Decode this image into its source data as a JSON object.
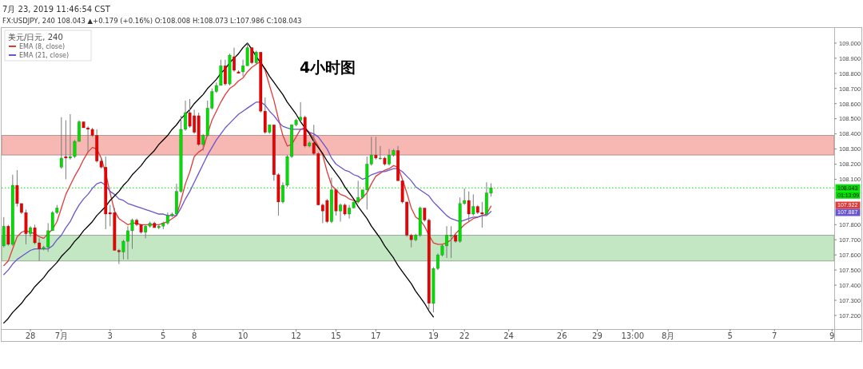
{
  "chart_data": {
    "type": "candlestick",
    "title": "4小时图",
    "subtitle": "FX:USDJPY, 240 108.043 ▲+0.179 (+0.16%) O:108.008 H:108.073 L:107.986 C:108.043",
    "legend_title": "美元/日元, 240",
    "annotations": [
      "7月 23, 2019 11:46:54 CST",
      "01:13:09",
      "107.922",
      "107.887"
    ],
    "legend": "top left",
    "categories": [
      null,
      null,
      null,
      null,
      null,
      null,
      "28",
      null,
      null,
      null,
      null,
      null,
      null,
      "7月",
      null,
      null,
      null,
      null,
      null,
      null,
      null,
      null,
      null,
      null,
      "3",
      null,
      null,
      null,
      null,
      null,
      null,
      null,
      null,
      null,
      null,
      null,
      "5",
      null,
      null,
      null,
      null,
      null,
      null,
      "8",
      null,
      null,
      null,
      null,
      null,
      null,
      null,
      null,
      null,
      null,
      "10",
      null,
      null,
      null,
      null,
      null,
      null,
      null,
      null,
      null,
      null,
      null,
      "12",
      null,
      null,
      null,
      null,
      null,
      null,
      null,
      null,
      "15",
      null,
      null,
      null,
      null,
      null,
      null,
      null,
      null,
      "17",
      null,
      null,
      null,
      null,
      null,
      null,
      null,
      null,
      null,
      null,
      null,
      null,
      "19",
      null,
      null,
      null,
      null,
      null,
      null,
      "22",
      null,
      null,
      null,
      null,
      null,
      null,
      null,
      null,
      null,
      "24",
      null,
      null,
      null,
      null,
      null,
      null,
      null,
      null,
      null,
      null,
      null,
      "26",
      null,
      null,
      null,
      null,
      null,
      null,
      null,
      "29",
      null,
      null,
      null,
      null,
      null,
      null,
      null,
      "13:00",
      null,
      null,
      null,
      null,
      null,
      null,
      null,
      "8月",
      null,
      null,
      null,
      null,
      null,
      null,
      null,
      null,
      null,
      null,
      null,
      null,
      null,
      "5",
      null,
      null,
      null,
      null,
      null,
      null,
      null,
      null,
      null,
      "7",
      null,
      null,
      null,
      null,
      null,
      null,
      null,
      null,
      null,
      null,
      null,
      null,
      "9"
    ],
    "ohlc": [
      [
        107.66,
        107.85,
        107.65,
        107.79
      ],
      [
        107.79,
        107.8,
        107.66,
        107.67
      ],
      [
        107.67,
        108.13,
        107.66,
        108.06
      ],
      [
        108.06,
        108.16,
        107.92,
        107.94
      ],
      [
        107.94,
        107.94,
        107.87,
        107.88
      ],
      [
        107.88,
        107.9,
        107.67,
        107.74
      ],
      [
        107.74,
        107.79,
        107.72,
        107.78
      ],
      [
        107.78,
        107.8,
        107.67,
        107.68
      ],
      [
        107.68,
        107.71,
        107.56,
        107.64
      ],
      [
        107.64,
        107.66,
        107.63,
        107.65
      ],
      [
        107.65,
        107.81,
        107.62,
        107.76
      ],
      [
        107.76,
        107.89,
        107.76,
        107.88
      ],
      [
        107.88,
        107.93,
        107.87,
        107.91
      ],
      [
        108.18,
        108.51,
        108.17,
        108.24
      ],
      [
        108.25,
        108.49,
        108.1,
        108.24
      ],
      [
        108.24,
        108.53,
        108.23,
        108.25
      ],
      [
        108.25,
        108.36,
        108.24,
        108.35
      ],
      [
        108.35,
        108.49,
        108.35,
        108.48
      ],
      [
        108.48,
        108.48,
        108.44,
        108.44
      ],
      [
        108.44,
        108.45,
        108.28,
        108.43
      ],
      [
        108.43,
        108.44,
        108.38,
        108.39
      ],
      [
        108.39,
        108.43,
        108.21,
        108.22
      ],
      [
        108.22,
        108.24,
        108.17,
        108.18
      ],
      [
        108.18,
        108.25,
        107.77,
        107.87
      ],
      [
        107.88,
        107.93,
        107.79,
        107.87
      ],
      [
        107.88,
        107.91,
        107.63,
        107.63
      ],
      [
        107.63,
        107.64,
        107.54,
        107.62
      ],
      [
        107.62,
        107.7,
        107.57,
        107.69
      ],
      [
        107.69,
        107.79,
        107.57,
        107.76
      ],
      [
        107.76,
        107.84,
        107.64,
        107.83
      ],
      [
        107.83,
        107.84,
        107.79,
        107.8
      ],
      [
        107.8,
        107.8,
        107.74,
        107.75
      ],
      [
        107.75,
        107.8,
        107.71,
        107.79
      ],
      [
        107.79,
        107.82,
        107.78,
        107.81
      ],
      [
        107.81,
        107.82,
        107.78,
        107.78
      ],
      [
        107.78,
        107.8,
        107.77,
        107.79
      ],
      [
        107.79,
        107.82,
        107.77,
        107.81
      ],
      [
        107.81,
        107.88,
        107.8,
        107.86
      ],
      [
        107.86,
        107.88,
        107.85,
        107.87
      ],
      [
        107.87,
        108.07,
        107.86,
        108.02
      ],
      [
        108.02,
        108.52,
        108.01,
        108.43
      ],
      [
        108.43,
        108.62,
        108.42,
        108.54
      ],
      [
        108.54,
        108.63,
        108.44,
        108.45
      ],
      [
        108.52,
        108.56,
        108.4,
        108.41
      ],
      [
        108.52,
        108.54,
        108.32,
        108.33
      ],
      [
        108.33,
        108.4,
        108.29,
        108.39
      ],
      [
        108.39,
        108.62,
        108.38,
        108.57
      ],
      [
        108.57,
        108.7,
        108.56,
        108.68
      ],
      [
        108.68,
        108.74,
        108.67,
        108.72
      ],
      [
        108.72,
        108.89,
        108.72,
        108.85
      ],
      [
        108.85,
        108.89,
        108.72,
        108.73
      ],
      [
        108.73,
        108.93,
        108.72,
        108.92
      ],
      [
        108.91,
        108.97,
        108.81,
        108.82
      ],
      [
        108.81,
        108.82,
        108.8,
        108.8
      ],
      [
        108.81,
        108.89,
        108.78,
        108.85
      ],
      [
        108.85,
        109.0,
        108.85,
        108.97
      ],
      [
        108.97,
        108.97,
        108.86,
        108.87
      ],
      [
        108.87,
        108.95,
        108.86,
        108.94
      ],
      [
        108.94,
        108.94,
        108.54,
        108.55
      ],
      [
        108.55,
        108.64,
        108.4,
        108.41
      ],
      [
        108.41,
        108.46,
        108.4,
        108.46
      ],
      [
        108.46,
        108.46,
        108.09,
        108.13
      ],
      [
        108.13,
        108.14,
        107.86,
        107.95
      ],
      [
        107.95,
        108.08,
        107.94,
        108.06
      ],
      [
        108.06,
        108.26,
        108.05,
        108.25
      ],
      [
        108.25,
        108.46,
        108.24,
        108.46
      ],
      [
        108.46,
        108.5,
        108.45,
        108.49
      ],
      [
        108.49,
        108.61,
        108.48,
        108.51
      ],
      [
        108.51,
        108.52,
        108.31,
        108.32
      ],
      [
        108.32,
        108.35,
        108.31,
        108.34
      ],
      [
        108.34,
        108.46,
        108.26,
        108.27
      ],
      [
        108.27,
        108.28,
        107.93,
        107.93
      ],
      [
        107.93,
        107.94,
        107.81,
        107.89
      ],
      [
        107.96,
        107.97,
        107.81,
        107.82
      ],
      [
        107.82,
        108.11,
        107.81,
        108.03
      ],
      [
        108.03,
        108.04,
        107.86,
        107.89
      ],
      [
        107.89,
        107.94,
        107.82,
        107.93
      ],
      [
        107.93,
        107.94,
        107.86,
        107.87
      ],
      [
        107.87,
        107.93,
        107.84,
        107.91
      ],
      [
        107.91,
        107.95,
        107.91,
        107.95
      ],
      [
        107.95,
        108.09,
        107.94,
        107.98
      ],
      [
        107.98,
        108.03,
        107.97,
        108.03
      ],
      [
        108.03,
        108.25,
        107.9,
        108.2
      ],
      [
        108.2,
        108.38,
        108.19,
        108.26
      ],
      [
        108.26,
        108.38,
        108.23,
        108.24
      ],
      [
        108.24,
        108.32,
        108.23,
        108.24
      ],
      [
        108.24,
        108.25,
        108.19,
        108.2
      ],
      [
        108.2,
        108.3,
        108.19,
        108.26
      ],
      [
        108.26,
        108.3,
        108.25,
        108.29
      ],
      [
        108.29,
        108.32,
        108.09,
        108.09
      ],
      [
        108.09,
        108.1,
        107.94,
        107.95
      ],
      [
        107.95,
        107.95,
        107.72,
        107.73
      ],
      [
        107.73,
        107.74,
        107.65,
        107.7
      ],
      [
        107.7,
        107.74,
        107.69,
        107.73
      ],
      [
        107.73,
        107.92,
        107.72,
        107.91
      ],
      [
        107.91,
        107.91,
        107.82,
        107.83
      ],
      [
        107.83,
        107.84,
        107.24,
        107.28
      ],
      [
        107.28,
        107.52,
        107.22,
        107.51
      ],
      [
        107.51,
        107.61,
        107.5,
        107.6
      ],
      [
        107.6,
        107.67,
        107.59,
        107.66
      ],
      [
        107.66,
        107.79,
        107.58,
        107.73
      ],
      [
        107.73,
        107.79,
        107.58,
        107.73
      ],
      [
        107.73,
        107.74,
        107.68,
        107.69
      ],
      [
        107.69,
        107.98,
        107.68,
        107.94
      ],
      [
        107.94,
        108.04,
        107.93,
        107.96
      ],
      [
        107.96,
        108.02,
        107.82,
        107.87
      ],
      [
        107.87,
        108.0,
        107.86,
        107.92
      ],
      [
        107.92,
        107.93,
        107.87,
        107.88
      ],
      [
        107.88,
        107.95,
        107.78,
        107.87
      ],
      [
        107.87,
        108.08,
        107.87,
        108.01
      ],
      [
        108.008,
        108.073,
        107.986,
        108.043
      ],
      null,
      null,
      null,
      null,
      null,
      null,
      null,
      null,
      null,
      null,
      null,
      null,
      null,
      null,
      null,
      null,
      null,
      null,
      null,
      null,
      null,
      null,
      null,
      null,
      null,
      null,
      null,
      null,
      null,
      null,
      null,
      null,
      null,
      null,
      null,
      null,
      null,
      null,
      null,
      null,
      null,
      null,
      null,
      null,
      null,
      null,
      null,
      null,
      null,
      null,
      null,
      null,
      null,
      null,
      null,
      null,
      null,
      null,
      null,
      null,
      null,
      null,
      null,
      null,
      null,
      null,
      null,
      null,
      null,
      null,
      null,
      null,
      null,
      null,
      null,
      null,
      null
    ],
    "colors": [
      "#00e000",
      "#ee0000",
      "#00e000",
      "#ee0000",
      "#ee0000",
      "#ee0000",
      "#00e000",
      "#ee0000",
      "#ee0000",
      "#00e000",
      "#00e000",
      "#00e000",
      "#00e000",
      "#00e000",
      "#ee0000",
      "#00e000",
      "#00e000",
      "#00e000",
      "#ee0000",
      "#ee0000",
      "#ee0000",
      "#ee0000",
      "#ee0000",
      "#ee0000",
      "#ee0000",
      "#ee0000",
      "#ee0000",
      "#00e000",
      "#00e000",
      "#00e000",
      "#ee0000",
      "#ee0000",
      "#00e000",
      "#00e000",
      "#ee0000",
      "#00e000",
      "#00e000",
      "#00e000",
      "#00e000",
      "#00e000",
      "#00e000",
      "#00e000",
      "#ee0000",
      "#ee0000",
      "#ee0000",
      "#00e000",
      "#00e000",
      "#00e000",
      "#00e000",
      "#00e000",
      "#ee0000",
      "#00e000",
      "#ee0000",
      "#ee0000",
      "#00e000",
      "#00e000",
      "#ee0000",
      "#00e000",
      "#ee0000",
      "#ee0000",
      "#00e000",
      "#ee0000",
      "#ee0000",
      "#00e000",
      "#00e000",
      "#00e000",
      "#00e000",
      "#00e000",
      "#ee0000",
      "#00e000",
      "#ee0000",
      "#ee0000",
      "#ee0000",
      "#ee0000",
      "#00e000",
      "#ee0000",
      "#00e000",
      "#ee0000",
      "#00e000",
      "#00e000",
      "#00e000",
      "#00e000",
      "#00e000",
      "#00e000",
      "#ee0000",
      "#00e000",
      "#ee0000",
      "#00e000",
      "#00e000",
      "#ee0000",
      "#ee0000",
      "#ee0000",
      "#ee0000",
      "#00e000",
      "#00e000",
      "#ee0000",
      "#ee0000",
      "#00e000",
      "#00e000",
      "#00e000",
      "#00e000",
      "#00e000",
      "#ee0000",
      "#00e000",
      "#00e000",
      "#ee0000",
      "#00e000",
      "#ee0000",
      "#ee0000",
      "#00e000",
      "#00e000",
      null,
      null,
      null,
      null,
      null,
      null,
      null,
      null,
      null,
      null,
      null,
      null,
      null,
      null,
      null,
      null,
      null,
      null,
      null,
      null,
      null,
      null,
      null,
      null,
      null,
      null,
      null,
      null,
      null,
      null,
      null,
      null,
      null,
      null,
      null,
      null,
      null,
      null,
      null,
      null,
      null,
      null,
      null,
      null,
      null,
      null,
      null,
      null,
      null,
      null,
      null,
      null,
      null,
      null,
      null,
      null,
      null,
      null,
      null,
      null,
      null,
      null,
      null,
      null,
      null,
      null,
      null,
      null,
      null,
      null,
      null,
      null,
      null,
      null,
      null,
      null,
      null
    ],
    "series": [
      {
        "name": "EMA (8, close)",
        "type": "line",
        "color": "#e23b37",
        "values": [
          107.53,
          107.56,
          107.64,
          107.72,
          107.75,
          107.76,
          107.75,
          107.74,
          107.72,
          107.71,
          107.74,
          107.77,
          107.82,
          107.91,
          108.0,
          108.06,
          108.12,
          108.17,
          108.23,
          108.28,
          108.31,
          108.3,
          108.24,
          108.14,
          108.01,
          107.89,
          107.84,
          107.82,
          107.8,
          107.81,
          107.81,
          107.8,
          107.8,
          107.8,
          107.8,
          107.8,
          107.81,
          107.82,
          107.84,
          107.86,
          107.96,
          108.07,
          108.15,
          108.25,
          108.28,
          108.3,
          108.4,
          108.49,
          108.55,
          108.61,
          108.66,
          108.7,
          108.72,
          108.75,
          108.77,
          108.81,
          108.84,
          108.86,
          108.88,
          108.82,
          108.72,
          108.62,
          108.5,
          108.39,
          108.32,
          108.33,
          108.38,
          108.43,
          108.44,
          108.41,
          108.37,
          108.32,
          108.26,
          108.15,
          108.06,
          108.03,
          108.0,
          107.99,
          107.97,
          107.96,
          107.95,
          107.98,
          108.01,
          108.07,
          108.12,
          108.14,
          108.16,
          108.17,
          108.19,
          108.18,
          108.1,
          108.01,
          107.91,
          107.85,
          107.83,
          107.79,
          107.73,
          107.68,
          107.67,
          107.67,
          107.68,
          107.7,
          107.74,
          107.77,
          107.8,
          107.82,
          107.84,
          107.85,
          107.86,
          107.87,
          107.922,
          null,
          null,
          null,
          null,
          null,
          null,
          null,
          null,
          null,
          null,
          null,
          null,
          null,
          null,
          null,
          null,
          null,
          null,
          null,
          null,
          null,
          null,
          null,
          null,
          null,
          null,
          null,
          null,
          null,
          null,
          null,
          null,
          null,
          null,
          null,
          null,
          null,
          null,
          null,
          null,
          null,
          null,
          null,
          null,
          null,
          null,
          null,
          null,
          null,
          null,
          null,
          null,
          null,
          null,
          null,
          null,
          null,
          null,
          null,
          null,
          null,
          null,
          null,
          null,
          null,
          null,
          null,
          null,
          null,
          null,
          null,
          null,
          null,
          null,
          null,
          null,
          null
        ]
      },
      {
        "name": "EMA (21, close)",
        "type": "line",
        "color": "#6a55d0",
        "values": [
          107.47,
          107.5,
          107.54,
          107.57,
          107.59,
          107.61,
          107.63,
          107.64,
          107.64,
          107.64,
          107.64,
          107.66,
          107.7,
          107.73,
          107.78,
          107.82,
          107.88,
          107.93,
          107.97,
          108.0,
          108.04,
          108.07,
          108.08,
          108.06,
          108.02,
          108.0,
          107.97,
          107.96,
          107.94,
          107.93,
          107.92,
          107.91,
          107.9,
          107.89,
          107.88,
          107.87,
          107.87,
          107.86,
          107.86,
          107.86,
          107.91,
          107.97,
          108.02,
          108.08,
          108.14,
          108.2,
          108.26,
          108.31,
          108.36,
          108.4,
          108.44,
          108.47,
          108.5,
          108.53,
          108.55,
          108.57,
          108.59,
          108.61,
          108.61,
          108.59,
          108.55,
          108.52,
          108.48,
          108.45,
          108.44,
          108.43,
          108.43,
          108.43,
          108.43,
          108.41,
          108.4,
          108.38,
          108.34,
          108.3,
          108.24,
          108.2,
          108.18,
          108.16,
          108.15,
          108.13,
          108.12,
          108.1,
          108.11,
          108.13,
          108.14,
          108.15,
          108.15,
          108.16,
          108.17,
          108.17,
          108.15,
          108.12,
          108.09,
          108.05,
          108.03,
          108.01,
          107.99,
          107.95,
          107.92,
          107.89,
          107.86,
          107.84,
          107.83,
          107.82,
          107.83,
          107.84,
          107.85,
          107.85,
          107.86,
          107.86,
          107.887,
          null,
          null,
          null,
          null,
          null,
          null,
          null,
          null,
          null,
          null,
          null,
          null,
          null,
          null,
          null,
          null,
          null,
          null,
          null,
          null,
          null,
          null,
          null,
          null,
          null,
          null,
          null,
          null,
          null,
          null,
          null,
          null,
          null,
          null,
          null,
          null,
          null,
          null,
          null,
          null,
          null,
          null,
          null,
          null,
          null,
          null,
          null,
          null,
          null,
          null,
          null,
          null,
          null,
          null,
          null,
          null,
          null,
          null,
          null,
          null,
          null,
          null,
          null,
          null,
          null,
          null,
          null,
          null,
          null,
          null,
          null,
          null,
          null,
          null,
          null,
          null,
          null
        ]
      },
      {
        "type": "line",
        "color": "#000000",
        "values": [
          107.15,
          107.18,
          107.22,
          107.25,
          107.28,
          107.32,
          107.35,
          107.39,
          107.42,
          107.45,
          107.49,
          107.52,
          107.55,
          107.59,
          107.62,
          107.65,
          107.69,
          107.72,
          107.76,
          107.79,
          107.82,
          107.86,
          107.89,
          107.92,
          107.96,
          107.99,
          108.02,
          108.06,
          108.09,
          108.13,
          108.16,
          108.19,
          108.23,
          108.26,
          108.29,
          108.33,
          108.36,
          108.39,
          108.43,
          108.46,
          108.5,
          108.53,
          108.56,
          108.6,
          108.63,
          108.66,
          108.7,
          108.73,
          108.76,
          108.8,
          108.83,
          108.87,
          108.9,
          108.93,
          108.97,
          109.0,
          108.96,
          108.91,
          108.87,
          108.83,
          108.78,
          108.74,
          108.7,
          108.66,
          108.61,
          108.57,
          108.53,
          108.48,
          108.44,
          108.4,
          108.35,
          108.31,
          108.27,
          108.22,
          108.18,
          108.14,
          108.1,
          108.05,
          108.01,
          107.97,
          107.92,
          107.88,
          107.84,
          107.79,
          107.75,
          107.71,
          107.66,
          107.62,
          107.58,
          107.53,
          107.49,
          107.45,
          107.41,
          107.36,
          107.32,
          107.28,
          107.23,
          107.19,
          null,
          null,
          null,
          null,
          null,
          null,
          null,
          null,
          null,
          null,
          null,
          null,
          null,
          null,
          null,
          null,
          null,
          null,
          null,
          null,
          null,
          null,
          null,
          null,
          null,
          null,
          null,
          null,
          null,
          null,
          null,
          null,
          null,
          null,
          null,
          null,
          null,
          null,
          null,
          null,
          null,
          null,
          null,
          null,
          null,
          null,
          null,
          null,
          null,
          null,
          null,
          null,
          null,
          null,
          null,
          null,
          null,
          null,
          null,
          null,
          null,
          null,
          null,
          null,
          null,
          null,
          null,
          null,
          null,
          null,
          null,
          null,
          null,
          null,
          null,
          null,
          null,
          null,
          null,
          null,
          null,
          null,
          null,
          null,
          null,
          null,
          null,
          null,
          null,
          null
        ]
      }
    ],
    "ylim": [
      107.11,
      109.1
    ],
    "yticks": [
      {
        "value": 107.2,
        "label": "107.200"
      },
      {
        "value": 107.3,
        "label": "107.300"
      },
      {
        "value": 107.4,
        "label": "107.400"
      },
      {
        "value": 107.5,
        "label": "107.500"
      },
      {
        "value": 107.6,
        "label": "107.600"
      },
      {
        "value": 107.7,
        "label": "107.700"
      },
      {
        "value": 107.8,
        "label": "107.800"
      },
      {
        "value": 108.1,
        "label": "108.100"
      },
      {
        "value": 108.2,
        "label": "108.200"
      },
      {
        "value": 108.3,
        "label": "108.300"
      },
      {
        "value": 108.4,
        "label": "108.400"
      },
      {
        "value": 108.5,
        "label": "108.500"
      },
      {
        "value": 108.6,
        "label": "108.600"
      },
      {
        "value": 108.7,
        "label": "108.700"
      },
      {
        "value": 108.8,
        "label": "108.800"
      },
      {
        "value": 108.9,
        "label": "108.900"
      },
      {
        "value": 109,
        "label": "109.000"
      }
    ],
    "ref_lines": [
      {
        "axis": "y",
        "value": 108.043,
        "label": "108.043",
        "color": "#00e000",
        "line_style": "dotted"
      }
    ],
    "bands": [
      {
        "axis": "y",
        "from": 108.26,
        "to": 108.39,
        "color": "#f6aaa6"
      },
      {
        "axis": "y",
        "from": 107.56,
        "to": 107.73,
        "color": "#b9e2b9"
      }
    ]
  }
}
